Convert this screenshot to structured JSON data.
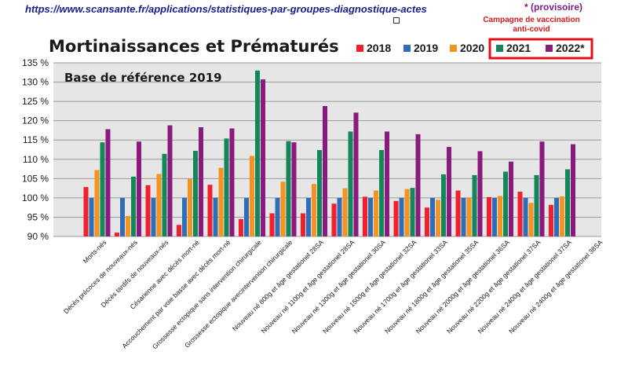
{
  "header": {
    "url_prefix": "https:",
    "url_host": "//www.scansante",
    "url_path": ".fr/applications/statistiques-par-groupes-diagnostique-actes",
    "provisional_note": "* (provisoire)",
    "vaccination_note_line1": "Campagne de vaccination",
    "vaccination_note_line2": "anti-covid"
  },
  "colors": {
    "2018": "#f0202e",
    "2019": "#2e6db7",
    "2020": "#f59322",
    "2021": "#13875a",
    "2022": "#8a1a7e",
    "plot_bg": "#e6e6e6",
    "highlight_box": "#e0101b"
  },
  "chart_data": {
    "type": "bar",
    "title": "Mortinaissances et Prématurés",
    "annotation": "Base de référence 2019",
    "xlabel": "",
    "ylabel": "",
    "ylim": [
      90,
      135
    ],
    "yticks": [
      "90 %",
      "95 %",
      "100 %",
      "105 %",
      "110 %",
      "115 %",
      "120 %",
      "125 %",
      "130 %",
      "135 %"
    ],
    "ytick_values": [
      90,
      95,
      100,
      105,
      110,
      115,
      120,
      125,
      130,
      135
    ],
    "legend_position": "top-right",
    "grid": true,
    "categories": [
      "Morts-nés",
      "Décès précoces de nouveaux-nés",
      "Décès tardifs de nouveaux-nés",
      "Césarienne avec décès mort-né",
      "Accouchement par voie basse avec décès mort-né",
      "Grossesse ectopique sans intervention chirurgicale",
      "Grossesse ectopique avecintervention chirurgicale",
      "Nouveau né 800g et âge gestationel 28SA",
      "Nouveau né 1100g et âge gestationel 28SA",
      "Nouveau né 1300g et âge gestationel 30SA",
      "Nouveau né 1500g et âge gestationel 32SA",
      "Nouveau né 1700g et âge gestationel 33SA",
      "Nouveau né 1800g et âge gestationel 35SA",
      "Nouveau né 2000g et âge gestationel 36SA",
      "Nouveau né 2200g et âge gestationel 37SA",
      "Nouveau né 2400g et âge gestationel 37SA",
      "Nouveau né 2400g et âge gestationel 38SA"
    ],
    "series": [
      {
        "name": "2018",
        "values": [
          102.8,
          91,
          103.3,
          93,
          103.4,
          94.5,
          96,
          96,
          98.5,
          100.3,
          99.2,
          97.5,
          101.9,
          100.2,
          101.6,
          98.2,
          null
        ]
      },
      {
        "name": "2019",
        "values": [
          100,
          100,
          100,
          100,
          100,
          100,
          100,
          100,
          100,
          100,
          100,
          100,
          100,
          100,
          100,
          100,
          null
        ]
      },
      {
        "name": "2020",
        "values": [
          107.2,
          95.3,
          106.2,
          105,
          107.8,
          110.9,
          104.2,
          103.6,
          102.5,
          101.9,
          102.3,
          99.5,
          100,
          100.5,
          98.7,
          100.4,
          null
        ]
      },
      {
        "name": "2021",
        "values": [
          114.4,
          105.5,
          111.4,
          112.2,
          115.4,
          133,
          114.7,
          112.4,
          117.2,
          112.4,
          102.6,
          106.1,
          105.9,
          106.8,
          105.9,
          107.4,
          null
        ]
      },
      {
        "name": "2022*",
        "values": [
          117.8,
          114.6,
          118.8,
          118.3,
          118,
          130.7,
          114.4,
          123.8,
          122.1,
          117.2,
          116.5,
          113.2,
          112.1,
          109.4,
          114.6,
          113.9,
          null
        ]
      }
    ]
  }
}
